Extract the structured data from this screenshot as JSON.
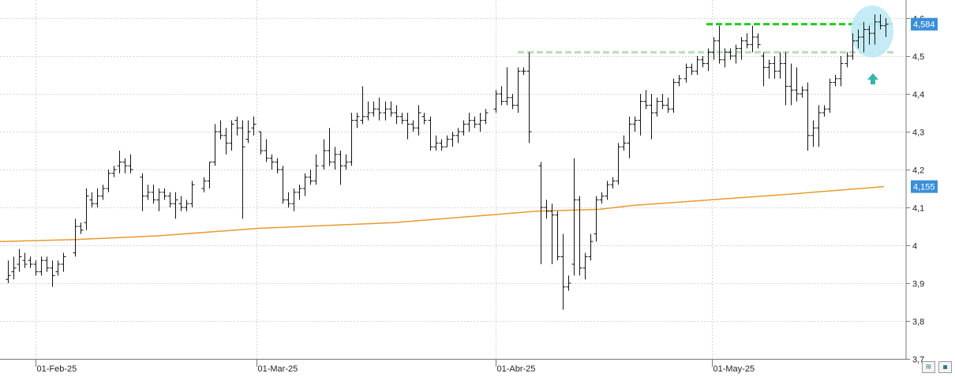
{
  "chart_data": {
    "type": "ohlc",
    "y_axis": {
      "range": [
        3.7,
        4.6
      ],
      "ticks": [
        "3,7",
        "3,8",
        "3,9",
        "4",
        "4,1",
        "4,2",
        "4,3",
        "4,4",
        "4,5",
        "4,6"
      ],
      "position": "right"
    },
    "x_axis": {
      "labels": [
        "01-Feb-25",
        "01-Mar-25",
        "01-Abr-25",
        "01-May-25"
      ]
    },
    "grid": "horizontal dotted",
    "price_tag": {
      "value": "4,584",
      "color": "#3a8fd8"
    },
    "ma_tag": {
      "value": "4,155",
      "color": "#3a8fd8"
    },
    "resistance_levels": [
      {
        "level": 4.584,
        "color": "#22cc22",
        "style": "dashed"
      },
      {
        "level": 4.51,
        "color": "#b8dcb8",
        "style": "dashed"
      }
    ],
    "moving_average": {
      "color": "#e89a2e",
      "points": [
        [
          0,
          4.01
        ],
        [
          95,
          4.015
        ],
        [
          200,
          4.025
        ],
        [
          330,
          4.045
        ],
        [
          500,
          4.06
        ],
        [
          620,
          4.08
        ],
        [
          680,
          4.09
        ],
        [
          760,
          4.095
        ],
        [
          800,
          4.105
        ],
        [
          900,
          4.12
        ],
        [
          1000,
          4.135
        ],
        [
          1120,
          4.155
        ]
      ]
    },
    "highlight": {
      "shape": "ellipse",
      "color": "#bfeaf5"
    },
    "arrow": {
      "direction": "up",
      "color": "#37b6a8"
    },
    "bars": [
      [
        10,
        3.91,
        3.9,
        3.96,
        3.92
      ],
      [
        17,
        3.93,
        3.91,
        3.97,
        3.94
      ],
      [
        24,
        3.95,
        3.93,
        3.99,
        3.97
      ],
      [
        31,
        3.96,
        3.94,
        3.98,
        3.95
      ],
      [
        38,
        3.96,
        3.94,
        3.97,
        3.95
      ],
      [
        45,
        3.95,
        3.92,
        3.96,
        3.93
      ],
      [
        52,
        3.93,
        3.92,
        3.97,
        3.96
      ],
      [
        59,
        3.96,
        3.93,
        3.97,
        3.94
      ],
      [
        66,
        3.94,
        3.89,
        3.96,
        3.92
      ],
      [
        73,
        3.93,
        3.92,
        3.96,
        3.95
      ],
      [
        80,
        3.95,
        3.93,
        3.98,
        3.97
      ],
      [
        95,
        3.98,
        3.97,
        4.07,
        4.05
      ],
      [
        102,
        4.05,
        4.03,
        4.06,
        4.04
      ],
      [
        109,
        4.06,
        4.04,
        4.15,
        4.13
      ],
      [
        116,
        4.12,
        4.1,
        4.14,
        4.11
      ],
      [
        123,
        4.11,
        4.1,
        4.15,
        4.13
      ],
      [
        130,
        4.13,
        4.12,
        4.16,
        4.15
      ],
      [
        137,
        4.15,
        4.14,
        4.2,
        4.19
      ],
      [
        144,
        4.19,
        4.18,
        4.21,
        4.2
      ],
      [
        151,
        4.21,
        4.19,
        4.25,
        4.22
      ],
      [
        158,
        4.22,
        4.19,
        4.23,
        4.21
      ],
      [
        165,
        4.21,
        4.19,
        4.24,
        4.2
      ],
      [
        180,
        4.18,
        4.09,
        4.19,
        4.13
      ],
      [
        187,
        4.13,
        4.12,
        4.16,
        4.14
      ],
      [
        194,
        4.14,
        4.11,
        4.16,
        4.12
      ],
      [
        201,
        4.12,
        4.09,
        4.15,
        4.14
      ],
      [
        208,
        4.14,
        4.12,
        4.15,
        4.13
      ],
      [
        215,
        4.13,
        4.1,
        4.14,
        4.11
      ],
      [
        222,
        4.11,
        4.07,
        4.14,
        4.12
      ],
      [
        229,
        4.11,
        4.09,
        4.13,
        4.1
      ],
      [
        236,
        4.1,
        4.09,
        4.12,
        4.11
      ],
      [
        243,
        4.11,
        4.1,
        4.17,
        4.16
      ],
      [
        258,
        4.15,
        4.14,
        4.18,
        4.17
      ],
      [
        265,
        4.17,
        4.15,
        4.22,
        4.22
      ],
      [
        272,
        4.22,
        4.21,
        4.32,
        4.3
      ],
      [
        279,
        4.3,
        4.28,
        4.33,
        4.29
      ],
      [
        286,
        4.29,
        4.24,
        4.31,
        4.27
      ],
      [
        293,
        4.27,
        4.25,
        4.33,
        4.32
      ],
      [
        300,
        4.33,
        4.29,
        4.34,
        4.31
      ],
      [
        307,
        4.31,
        4.07,
        4.33,
        4.26
      ],
      [
        314,
        4.28,
        4.27,
        4.33,
        4.3
      ],
      [
        321,
        4.31,
        4.29,
        4.34,
        4.32
      ],
      [
        330,
        4.3,
        4.24,
        4.3,
        4.25
      ],
      [
        337,
        4.25,
        4.22,
        4.28,
        4.23
      ],
      [
        344,
        4.23,
        4.2,
        4.24,
        4.22
      ],
      [
        351,
        4.22,
        4.19,
        4.23,
        4.2
      ],
      [
        358,
        4.2,
        4.11,
        4.21,
        4.12
      ],
      [
        365,
        4.12,
        4.1,
        4.14,
        4.11
      ],
      [
        372,
        4.11,
        4.09,
        4.15,
        4.14
      ],
      [
        379,
        4.14,
        4.12,
        4.16,
        4.15
      ],
      [
        386,
        4.15,
        4.13,
        4.19,
        4.18
      ],
      [
        393,
        4.18,
        4.16,
        4.2,
        4.17
      ],
      [
        400,
        4.17,
        4.16,
        4.24,
        4.21
      ],
      [
        410,
        4.21,
        4.2,
        4.28,
        4.25
      ],
      [
        417,
        4.25,
        4.21,
        4.31,
        4.22
      ],
      [
        424,
        4.22,
        4.2,
        4.26,
        4.24
      ],
      [
        431,
        4.24,
        4.16,
        4.25,
        4.21
      ],
      [
        438,
        4.21,
        4.2,
        4.24,
        4.22
      ],
      [
        445,
        4.22,
        4.21,
        4.35,
        4.33
      ],
      [
        452,
        4.33,
        4.31,
        4.35,
        4.34
      ],
      [
        459,
        4.33,
        4.32,
        4.42,
        4.34
      ],
      [
        466,
        4.34,
        4.33,
        4.38,
        4.35
      ],
      [
        473,
        4.35,
        4.34,
        4.38,
        4.36
      ],
      [
        480,
        4.36,
        4.33,
        4.39,
        4.35
      ],
      [
        488,
        4.35,
        4.33,
        4.38,
        4.36
      ],
      [
        495,
        4.36,
        4.34,
        4.38,
        4.35
      ],
      [
        502,
        4.35,
        4.32,
        4.37,
        4.34
      ],
      [
        509,
        4.34,
        4.32,
        4.35,
        4.33
      ],
      [
        516,
        4.33,
        4.28,
        4.35,
        4.32
      ],
      [
        523,
        4.32,
        4.3,
        4.33,
        4.31
      ],
      [
        530,
        4.31,
        4.29,
        4.37,
        4.35
      ],
      [
        537,
        4.34,
        4.32,
        4.35,
        4.33
      ],
      [
        545,
        4.33,
        4.25,
        4.34,
        4.26
      ],
      [
        552,
        4.26,
        4.25,
        4.29,
        4.27
      ],
      [
        559,
        4.27,
        4.25,
        4.28,
        4.26
      ],
      [
        566,
        4.26,
        4.26,
        4.29,
        4.28
      ],
      [
        573,
        4.28,
        4.26,
        4.3,
        4.29
      ],
      [
        580,
        4.29,
        4.27,
        4.31,
        4.3
      ],
      [
        587,
        4.3,
        4.29,
        4.33,
        4.32
      ],
      [
        594,
        4.32,
        4.3,
        4.35,
        4.33
      ],
      [
        601,
        4.33,
        4.31,
        4.34,
        4.32
      ],
      [
        608,
        4.32,
        4.3,
        4.35,
        4.33
      ],
      [
        615,
        4.33,
        4.32,
        4.36,
        4.35
      ],
      [
        628,
        4.36,
        4.35,
        4.41,
        4.4
      ],
      [
        635,
        4.4,
        4.37,
        4.42,
        4.38
      ],
      [
        642,
        4.38,
        4.37,
        4.47,
        4.39
      ],
      [
        649,
        4.39,
        4.36,
        4.4,
        4.37
      ],
      [
        656,
        4.37,
        4.35,
        4.47,
        4.46
      ],
      [
        663,
        4.46,
        4.45,
        4.47,
        4.46
      ],
      [
        670,
        4.46,
        4.27,
        4.51,
        4.3
      ],
      [
        685,
        4.21,
        3.95,
        4.22,
        4.1
      ],
      [
        692,
        4.1,
        4.07,
        4.12,
        4.09
      ],
      [
        699,
        4.09,
        3.95,
        4.11,
        4.08
      ],
      [
        706,
        4.08,
        3.96,
        4.09,
        3.97
      ],
      [
        713,
        3.97,
        3.83,
        4.03,
        3.89
      ],
      [
        720,
        3.89,
        3.88,
        3.92,
        3.9
      ],
      [
        727,
        3.95,
        3.92,
        4.23,
        4.12
      ],
      [
        734,
        4.12,
        3.92,
        4.13,
        3.94
      ],
      [
        741,
        3.94,
        3.91,
        3.98,
        3.97
      ],
      [
        748,
        3.97,
        3.96,
        4.03,
        4.01
      ],
      [
        755,
        4.03,
        4.01,
        4.13,
        4.12
      ],
      [
        762,
        4.12,
        4.11,
        4.14,
        4.13
      ],
      [
        769,
        4.13,
        4.12,
        4.17,
        4.16
      ],
      [
        776,
        4.16,
        4.15,
        4.18,
        4.17
      ],
      [
        783,
        4.17,
        4.16,
        4.27,
        4.26
      ],
      [
        790,
        4.26,
        4.25,
        4.29,
        4.27
      ],
      [
        797,
        4.27,
        4.23,
        4.34,
        4.32
      ],
      [
        804,
        4.32,
        4.3,
        4.34,
        4.33
      ],
      [
        811,
        4.33,
        4.29,
        4.4,
        4.38
      ],
      [
        818,
        4.38,
        4.36,
        4.41,
        4.37
      ],
      [
        825,
        4.37,
        4.28,
        4.4,
        4.35
      ],
      [
        832,
        4.35,
        4.34,
        4.39,
        4.38
      ],
      [
        839,
        4.38,
        4.36,
        4.4,
        4.37
      ],
      [
        846,
        4.37,
        4.35,
        4.39,
        4.36
      ],
      [
        853,
        4.36,
        4.35,
        4.44,
        4.43
      ],
      [
        860,
        4.43,
        4.42,
        4.45,
        4.44
      ],
      [
        869,
        4.44,
        4.43,
        4.48,
        4.47
      ],
      [
        876,
        4.47,
        4.45,
        4.48,
        4.46
      ],
      [
        883,
        4.46,
        4.45,
        4.5,
        4.49
      ],
      [
        890,
        4.49,
        4.47,
        4.5,
        4.48
      ],
      [
        897,
        4.48,
        4.46,
        4.52,
        4.51
      ],
      [
        904,
        4.51,
        4.49,
        4.55,
        4.54
      ],
      [
        911,
        4.54,
        4.48,
        4.58,
        4.49
      ],
      [
        918,
        4.49,
        4.47,
        4.52,
        4.51
      ],
      [
        925,
        4.51,
        4.49,
        4.52,
        4.5
      ],
      [
        932,
        4.5,
        4.48,
        4.53,
        4.52
      ],
      [
        939,
        4.52,
        4.49,
        4.55,
        4.54
      ],
      [
        946,
        4.54,
        4.52,
        4.56,
        4.53
      ],
      [
        953,
        4.53,
        4.51,
        4.58,
        4.55
      ],
      [
        960,
        4.55,
        4.52,
        4.56,
        4.53
      ],
      [
        967,
        4.5,
        4.42,
        4.51,
        4.47
      ],
      [
        974,
        4.47,
        4.44,
        4.49,
        4.48
      ],
      [
        981,
        4.48,
        4.44,
        4.5,
        4.46
      ],
      [
        988,
        4.46,
        4.44,
        4.51,
        4.48
      ],
      [
        995,
        4.48,
        4.37,
        4.51,
        4.42
      ],
      [
        1002,
        4.42,
        4.37,
        4.48,
        4.41
      ],
      [
        1009,
        4.41,
        4.38,
        4.47,
        4.4
      ],
      [
        1016,
        4.4,
        4.39,
        4.42,
        4.41
      ],
      [
        1023,
        4.41,
        4.25,
        4.43,
        4.29
      ],
      [
        1030,
        4.29,
        4.26,
        4.33,
        4.31
      ],
      [
        1037,
        4.31,
        4.26,
        4.37,
        4.35
      ],
      [
        1044,
        4.35,
        4.34,
        4.37,
        4.36
      ],
      [
        1051,
        4.36,
        4.35,
        4.44,
        4.43
      ],
      [
        1058,
        4.43,
        4.42,
        4.45,
        4.44
      ],
      [
        1065,
        4.44,
        4.42,
        4.5,
        4.48
      ],
      [
        1073,
        4.48,
        4.47,
        4.51,
        4.5
      ],
      [
        1080,
        4.5,
        4.49,
        4.56,
        4.54
      ],
      [
        1087,
        4.54,
        4.52,
        4.57,
        4.55
      ],
      [
        1094,
        4.55,
        4.51,
        4.59,
        4.57
      ],
      [
        1101,
        4.57,
        4.53,
        4.58,
        4.56
      ],
      [
        1108,
        4.56,
        4.53,
        4.61,
        4.59
      ],
      [
        1115,
        4.59,
        4.57,
        4.61,
        4.58
      ],
      [
        1122,
        4.58,
        4.55,
        4.6,
        4.584
      ]
    ]
  },
  "controls": {
    "button_1_icon": "fit-chart-icon",
    "button_2_icon": "save-icon"
  }
}
